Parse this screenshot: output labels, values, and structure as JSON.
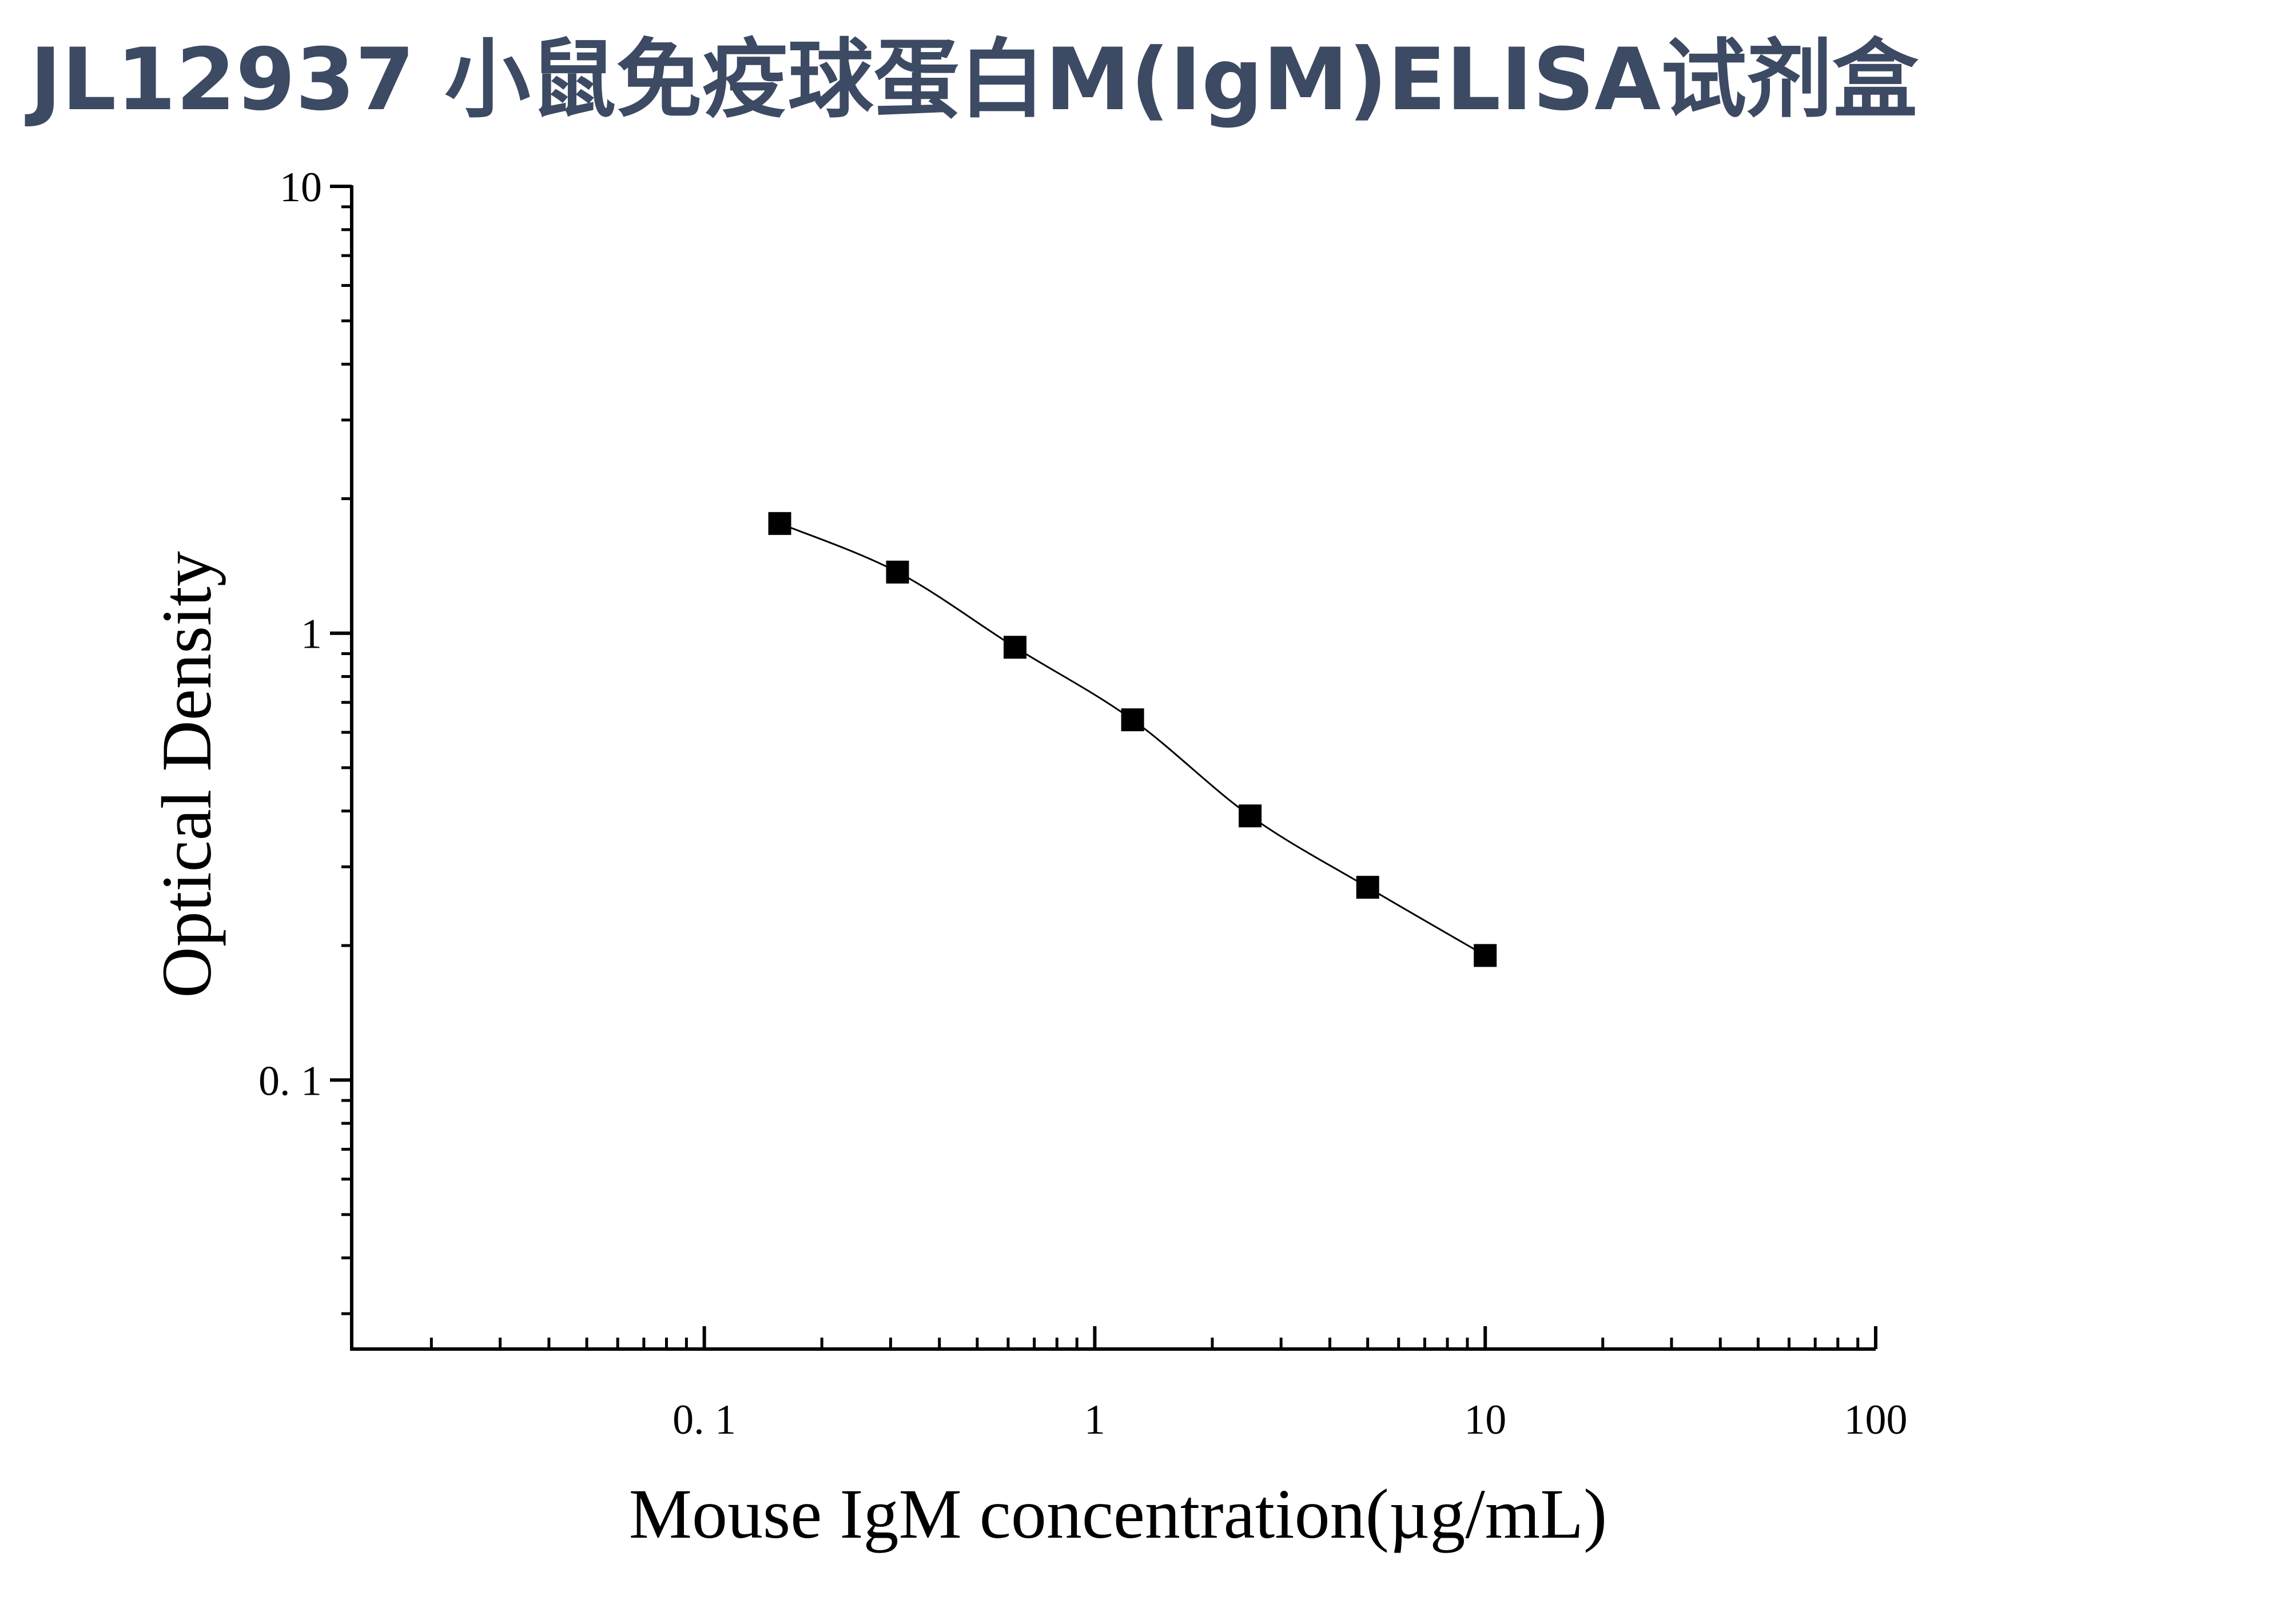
{
  "page": {
    "title": "JL12937 小鼠免疫球蛋白M(IgM)ELISA试剂盒"
  },
  "chart_data": {
    "type": "scatter",
    "title": "",
    "xlabel": "Mouse IgM concentration(µg/mL)",
    "ylabel": "Optical Density",
    "x_scale": "log",
    "y_scale": "log",
    "xlim": [
      0.0125,
      100
    ],
    "ylim": [
      0.025,
      10
    ],
    "x_ticks": [
      0.1,
      1,
      10,
      100
    ],
    "x_tick_labels": [
      "0. 1",
      "1",
      "10",
      "100"
    ],
    "y_ticks": [
      0.1,
      1,
      10
    ],
    "y_tick_labels": [
      "0. 1",
      "1",
      "10"
    ],
    "grid": false,
    "legend": "none",
    "series": [
      {
        "marker": "square",
        "fit_line": "smooth curve",
        "x": [
          0.156,
          0.3125,
          0.625,
          1.25,
          2.5,
          5,
          10
        ],
        "y": [
          1.76,
          1.37,
          0.93,
          0.64,
          0.39,
          0.27,
          0.19
        ]
      }
    ],
    "colors": {
      "axis": "#000000",
      "marker": "#000000",
      "line": "#000000",
      "title": "#3d4a63"
    }
  }
}
